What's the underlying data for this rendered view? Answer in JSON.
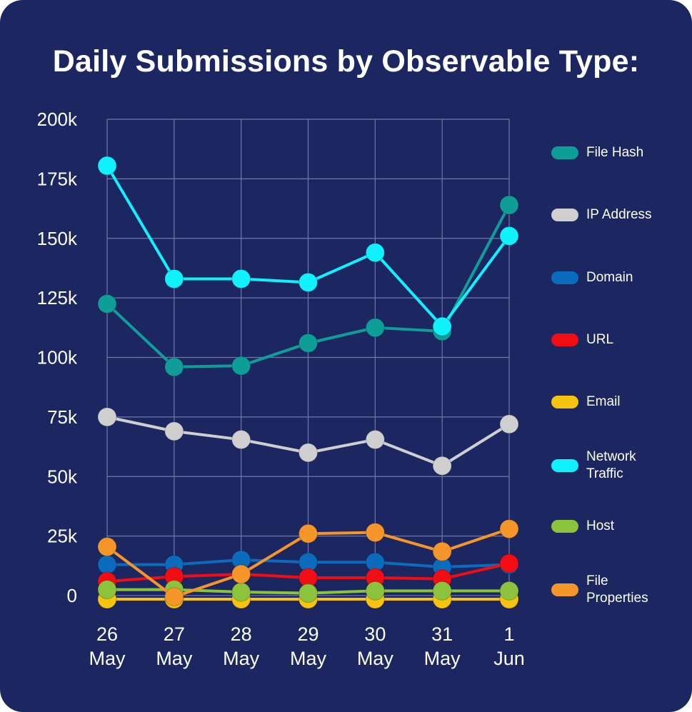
{
  "chart_data": {
    "type": "line",
    "title": "Daily Submissions by Observable Type:",
    "xlabel": "",
    "ylabel": "",
    "categories": [
      "26\nMay",
      "27\nMay",
      "28\nMay",
      "29\nMay",
      "30\nMay",
      "31\nMay",
      "1\nJun"
    ],
    "ylim": [
      0,
      200000
    ],
    "y_ticks": [
      0,
      25000,
      50000,
      75000,
      100000,
      125000,
      150000,
      175000,
      200000
    ],
    "y_tick_labels": [
      "0",
      "25k",
      "50k",
      "75k",
      "100k",
      "125k",
      "150k",
      "175k",
      "200k"
    ],
    "grid": true,
    "legend_position": "right",
    "series": [
      {
        "name": "File Hash",
        "color": "#0e9e97",
        "values": [
          122500,
          96000,
          96500,
          106000,
          112500,
          111000,
          164000
        ]
      },
      {
        "name": "IP Address",
        "color": "#cfcfcf",
        "values": [
          75000,
          69000,
          65500,
          60000,
          65500,
          54500,
          72000
        ]
      },
      {
        "name": "Domain",
        "color": "#0b6bbd",
        "values": [
          13000,
          13000,
          15000,
          14000,
          14000,
          12000,
          13000
        ]
      },
      {
        "name": "URL",
        "color": "#f20d14",
        "values": [
          6000,
          8000,
          9000,
          7500,
          7500,
          7000,
          13500
        ]
      },
      {
        "name": "Email",
        "color": "#f6c310",
        "values": [
          -1500,
          -1500,
          -1500,
          -1500,
          -1500,
          -1500,
          -1500
        ]
      },
      {
        "name": "Network\nTraffic",
        "color": "#11f1fb",
        "values": [
          180500,
          133000,
          133000,
          131500,
          144000,
          113000,
          151000
        ]
      },
      {
        "name": "Host",
        "color": "#8bc43c",
        "values": [
          2500,
          2500,
          1500,
          1000,
          2000,
          2000,
          2000
        ]
      },
      {
        "name": "File\nProperties",
        "color": "#f5962a",
        "values": [
          20500,
          -500,
          9000,
          26000,
          26500,
          18500,
          28000
        ]
      }
    ]
  }
}
